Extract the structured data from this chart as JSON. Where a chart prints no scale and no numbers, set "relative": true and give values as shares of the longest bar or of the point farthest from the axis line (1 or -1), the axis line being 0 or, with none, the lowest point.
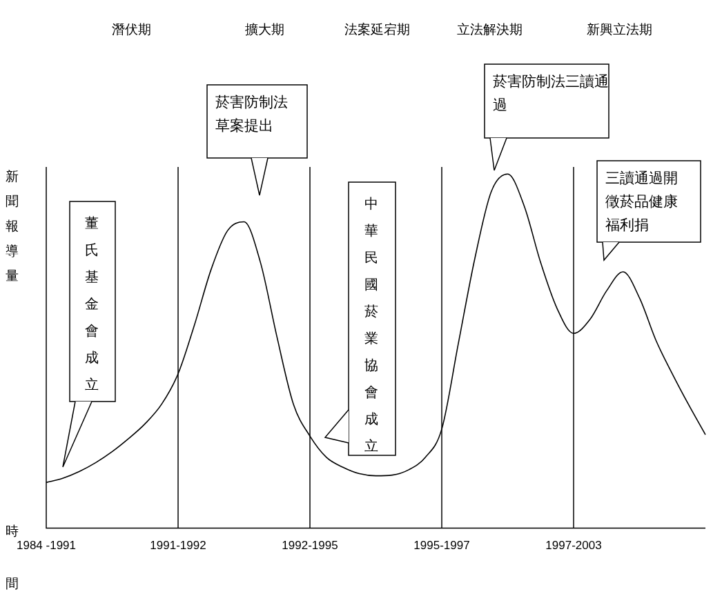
{
  "chart_data": {
    "type": "line",
    "relative": true,
    "xlabel": "時間",
    "ylabel": "新聞報導量",
    "categories": [
      "1984 -1991",
      null,
      null,
      null,
      null,
      null,
      null,
      null,
      "1991-1992",
      null,
      null,
      null,
      null,
      null,
      null,
      null,
      "1992-1995",
      null,
      null,
      null,
      null,
      null,
      null,
      null,
      "1995-1997",
      null,
      null,
      null,
      null,
      null,
      null,
      null,
      "1997-2003",
      null,
      null,
      null,
      null,
      null,
      null,
      null,
      null
    ],
    "ref_lines": [
      {
        "axis": "x",
        "value": "1991-1992"
      },
      {
        "axis": "x",
        "value": "1992-1995"
      },
      {
        "axis": "x",
        "value": "1995-1997"
      },
      {
        "axis": "x",
        "value": "1997-2003"
      }
    ],
    "series": [
      {
        "color": "#000000",
        "values": [
          0.129,
          0.141,
          0.16,
          0.185,
          0.216,
          0.253,
          0.295,
          0.35,
          0.436,
          0.575,
          0.73,
          0.84,
          0.865,
          0.75,
          0.54,
          0.35,
          0.26,
          0.2,
          0.172,
          0.154,
          0.148,
          0.15,
          0.165,
          0.2,
          0.28,
          0.52,
          0.76,
          0.95,
          1.0,
          0.91,
          0.75,
          0.62,
          0.55,
          0.59,
          0.67,
          0.724,
          0.65,
          0.53,
          0.435,
          0.347,
          0.264
        ]
      }
    ],
    "annotations": [
      "潛伏期",
      "擴大期",
      "法案延宕期",
      "立法解決期",
      "新興立法期",
      "董氏基金會成立",
      "菸害防制法草案提出",
      "中華民國菸業協會成立",
      "菸害防制法三讀通過",
      "三讀通過開徵菸品健康福利捐"
    ],
    "grid": false
  }
}
